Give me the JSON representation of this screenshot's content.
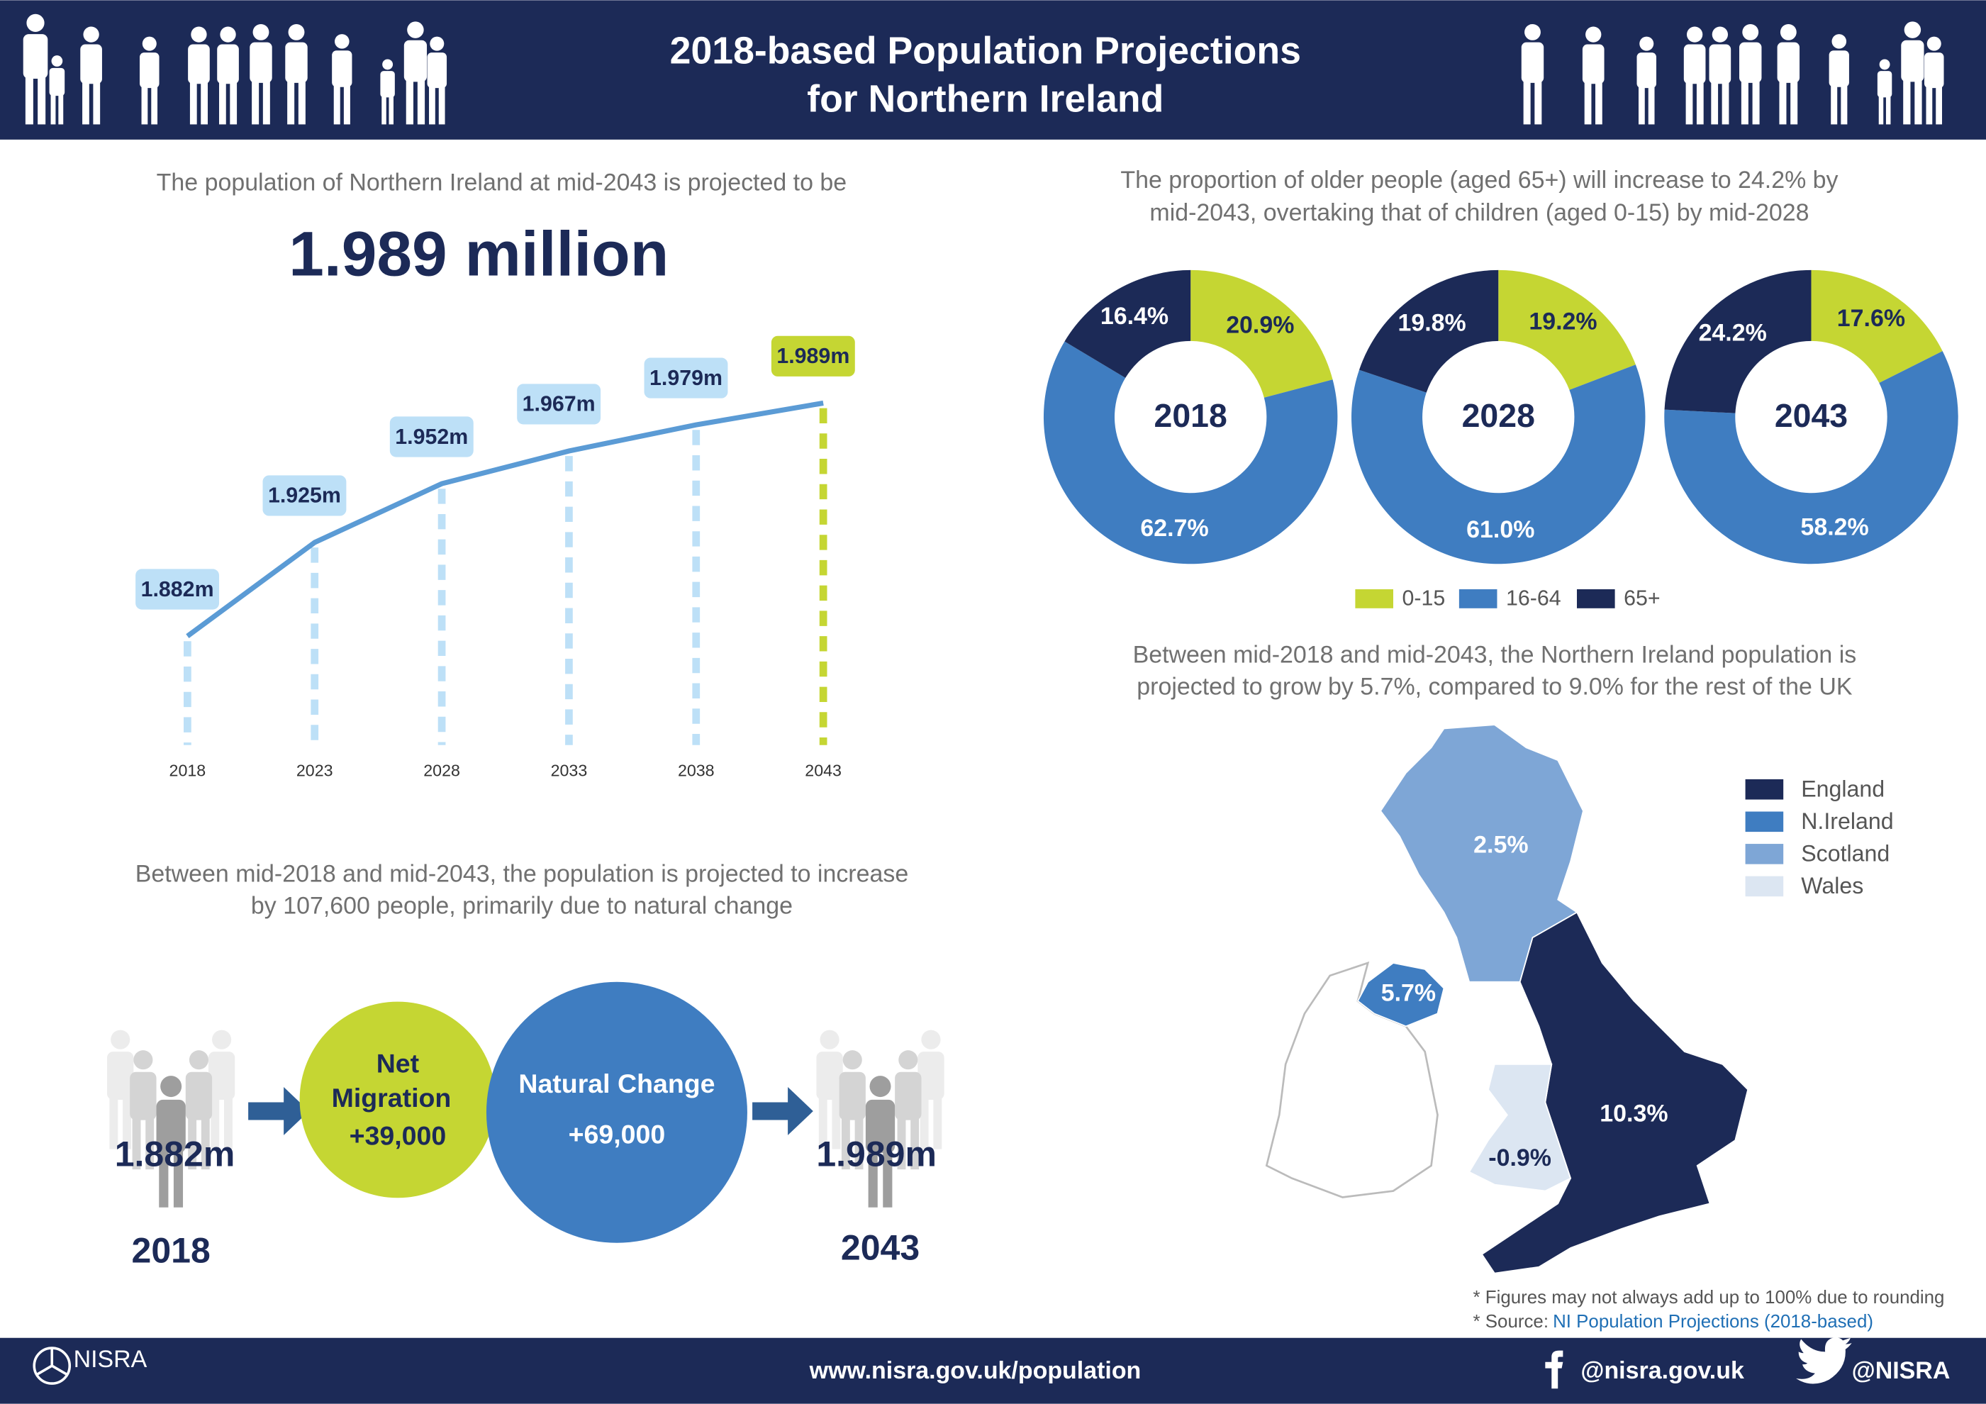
{
  "header": {
    "title": [
      "2018-based Population Projections",
      "for Northern Ireland"
    ]
  },
  "population": {
    "intro": "The population of Northern Ireland at mid-2043 is projected to be",
    "headline": "1.989 million"
  },
  "proportion": {
    "intro": [
      "The proportion of older people (aged 65+) will increase to 24.2% by",
      "mid-2043, overtaking that of children (aged 0-15) by mid-2028"
    ]
  },
  "growth": {
    "intro": [
      "Between mid-2018 and mid-2043, the Northern Ireland population is",
      "projected to grow by 5.7%, compared to 9.0% for the rest of the UK"
    ]
  },
  "change": {
    "intro": [
      "Between mid-2018 and mid-2043, the population is projected to increase",
      "by 107,600 people, primarily due to natural change"
    ],
    "start": {
      "value": "1.882m",
      "year": "2018"
    },
    "end": {
      "value": "1.989m",
      "year": "2043"
    },
    "net_migration": {
      "label": [
        "Net",
        "Migration"
      ],
      "value": 39000,
      "value_label": "+39,000"
    },
    "natural_change": {
      "label": "Natural Change",
      "value": 69000,
      "value_label": "+69,000"
    }
  },
  "notes": {
    "rounding": "* Figures may not always add up to 100% due to rounding",
    "source_prefix": "* Source:",
    "source_link": "NI Population Projections (2018-based)"
  },
  "footer": {
    "logo": "NISRA",
    "url": "www.nisra.gov.uk/population",
    "facebook": "@nisra.gov.uk",
    "twitter": "@NISRA"
  },
  "chart_data": [
    {
      "type": "line",
      "x": [
        2018,
        2023,
        2028,
        2033,
        2038,
        2043
      ],
      "values": [
        1.882,
        1.925,
        1.952,
        1.967,
        1.979,
        1.989
      ],
      "value_labels": [
        "1.882m",
        "1.925m",
        "1.952m",
        "1.967m",
        "1.979m",
        "1.989m"
      ],
      "color": "#5b9bd5",
      "highlight_color": "#c5d633"
    },
    {
      "type": "donut",
      "categories": [
        "2018",
        "2028",
        "2043"
      ],
      "series": [
        {
          "name": "0-15",
          "color": "#c5d633",
          "values": [
            20.9,
            19.2,
            17.6
          ],
          "value_labels": [
            "20.9%",
            "19.2%",
            "17.6%"
          ]
        },
        {
          "name": "16-64",
          "color": "#3f7dc1",
          "values": [
            62.7,
            61.0,
            58.2
          ],
          "value_labels": [
            "62.7%",
            "61.0%",
            "58.2%"
          ]
        },
        {
          "name": "65+",
          "color": "#1c2a57",
          "values": [
            16.4,
            19.8,
            24.2
          ],
          "value_labels": [
            "16.4%",
            "19.8%",
            "24.2%"
          ]
        }
      ]
    },
    {
      "type": "map",
      "categories": [
        "England",
        "N.Ireland",
        "Scotland",
        "Wales"
      ],
      "colors": [
        "#1c2a57",
        "#3f7dc1",
        "#7ea6d6",
        "#dce6f2"
      ],
      "values": [
        10.3,
        5.7,
        2.5,
        -0.9
      ],
      "value_labels": [
        "10.3%",
        "5.7%",
        "2.5%",
        "-0.9%"
      ]
    }
  ]
}
